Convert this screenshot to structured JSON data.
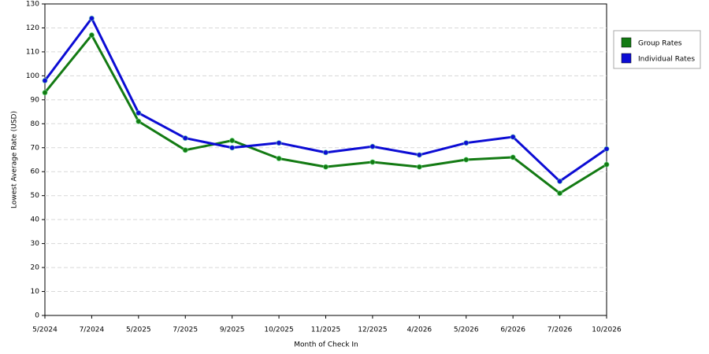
{
  "chart_data": {
    "type": "line",
    "x_label": "Month of Check In",
    "y_label": "Lowest Average Rate (USD)",
    "categories": [
      "5/2024",
      "7/2024",
      "5/2025",
      "7/2025",
      "9/2025",
      "10/2025",
      "11/2025",
      "12/2025",
      "4/2026",
      "5/2026",
      "6/2026",
      "7/2026",
      "10/2026"
    ],
    "series": [
      {
        "name": "Group Rates",
        "color": "#137a13",
        "values": [
          93,
          117,
          81,
          69,
          73,
          65.5,
          62,
          64,
          62,
          65,
          66,
          51,
          63
        ]
      },
      {
        "name": "Individual Rates",
        "color": "#0c0cd4",
        "values": [
          98,
          124,
          84.5,
          74,
          70,
          72,
          68,
          70.5,
          67,
          72,
          74.5,
          56,
          69.5
        ]
      }
    ],
    "ylim": [
      0,
      130
    ],
    "yticks": [
      0,
      10,
      20,
      30,
      40,
      50,
      60,
      70,
      80,
      90,
      100,
      110,
      120,
      130
    ],
    "grid": true,
    "legend": "right"
  }
}
